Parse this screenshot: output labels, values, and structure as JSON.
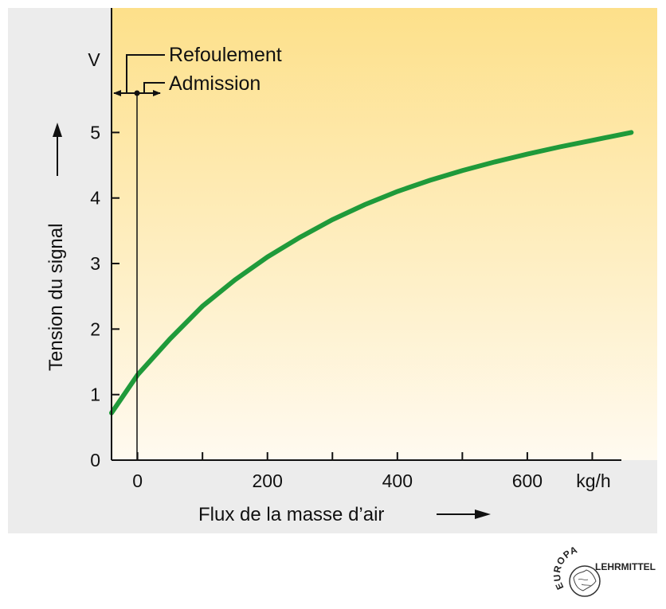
{
  "chart_data": {
    "type": "line",
    "xlabel": "Flux de la masse d’air",
    "ylabel": "Tension du signal",
    "x_unit": "kg/h",
    "y_unit": "V",
    "xlim": [
      -40,
      800
    ],
    "ylim": [
      0,
      6.9
    ],
    "x_ticks": [
      0,
      200,
      400,
      600
    ],
    "x_minor_ticks": [
      100,
      300,
      500,
      700
    ],
    "y_ticks": [
      0,
      1,
      2,
      3,
      4,
      5
    ],
    "grid": false,
    "series": [
      {
        "color": "#1f9a3a",
        "x": [
          -40,
          0,
          50,
          100,
          150,
          200,
          250,
          300,
          350,
          400,
          450,
          500,
          550,
          600,
          650,
          700,
          760
        ],
        "y": [
          0.72,
          1.3,
          1.85,
          2.35,
          2.75,
          3.1,
          3.4,
          3.67,
          3.9,
          4.1,
          4.27,
          4.42,
          4.55,
          4.67,
          4.78,
          4.88,
          5.0
        ]
      }
    ],
    "annotations": [
      {
        "text": "Refoulement",
        "direction": "left",
        "x": 0
      },
      {
        "text": "Admission",
        "direction": "right",
        "x": 0
      }
    ]
  },
  "logo": {
    "text_top": "EUROPA",
    "text_side": "LEHRMITTEL"
  },
  "colors": {
    "plot_top": "#fde08a",
    "plot_bottom": "#fffaf0",
    "panel": "#ececec",
    "curve": "#1f9a3a"
  }
}
